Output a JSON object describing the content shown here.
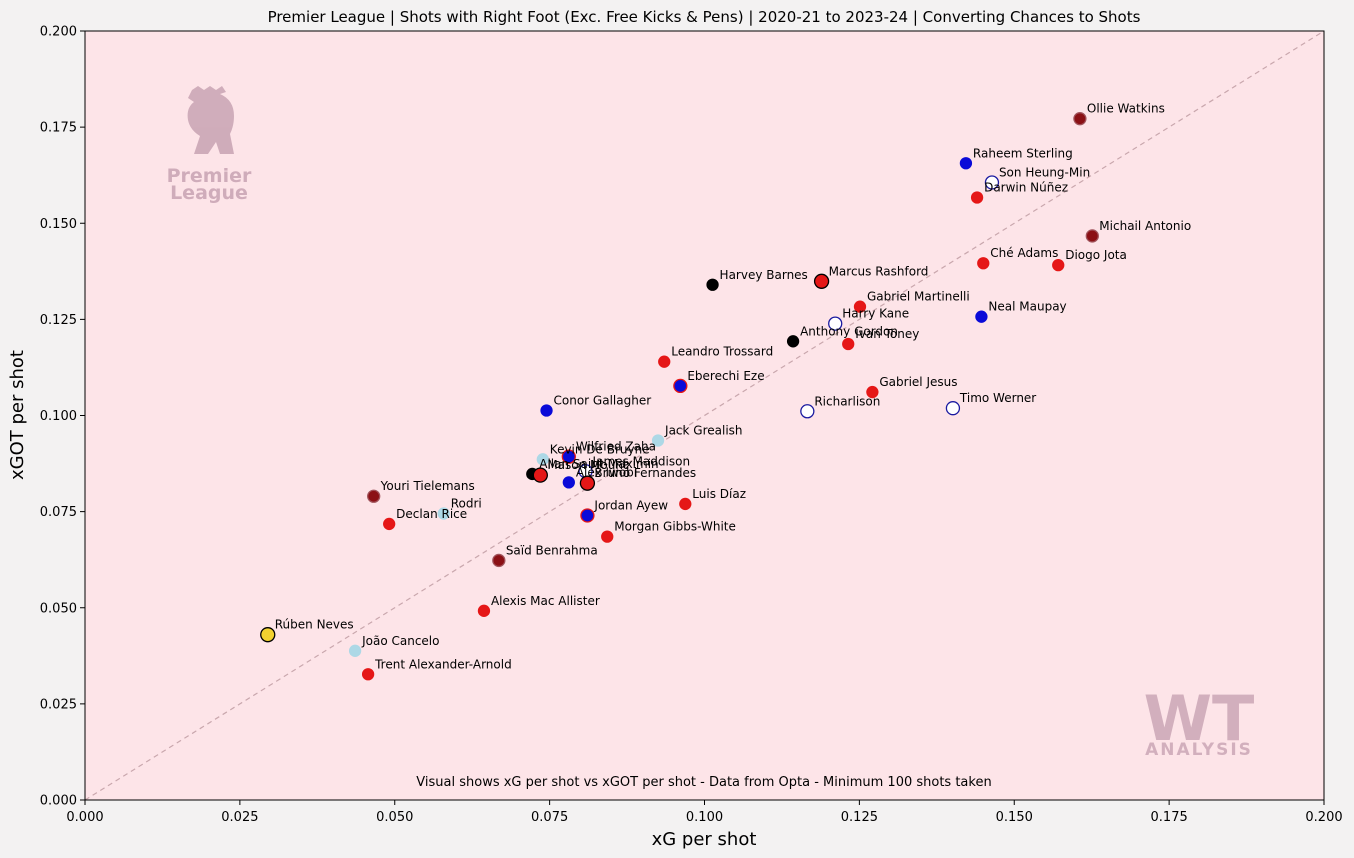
{
  "chart_data": {
    "type": "scatter",
    "title": "Premier League | Shots with Right Foot (Exc. Free Kicks & Pens) | 2020-21 to 2023-24 | Converting Chances to Shots",
    "xlabel": "xG per shot",
    "ylabel": "xGOT per shot",
    "caption": "Visual shows xG per shot vs xGOT per shot - Data from Opta - Minimum 100 shots taken",
    "xlim": [
      0.0,
      0.2
    ],
    "ylim": [
      0.0,
      0.2
    ],
    "xticks": [
      "0.000",
      "0.025",
      "0.050",
      "0.075",
      "0.100",
      "0.125",
      "0.150",
      "0.175",
      "0.200"
    ],
    "yticks": [
      "0.000",
      "0.025",
      "0.050",
      "0.075",
      "0.100",
      "0.125",
      "0.150",
      "0.175",
      "0.200"
    ],
    "reference_line": "y = x",
    "grid": false,
    "points": [
      {
        "label": "Ollie Watkins",
        "x": 0.1606,
        "y": 0.1772,
        "fill": "#8b1015",
        "stroke": "#a0525a",
        "r": 6
      },
      {
        "label": "Raheem Sterling",
        "x": 0.1422,
        "y": 0.1656,
        "fill": "#0a0ad8",
        "stroke": "#0a0ad8",
        "r": 5.5
      },
      {
        "label": "Son Heung-Min",
        "x": 0.1464,
        "y": 0.1606,
        "fill": "#ffffff",
        "stroke": "#1a1aa0",
        "r": 6.5
      },
      {
        "label": "Darwin Núñez",
        "x": 0.144,
        "y": 0.1567,
        "fill": "#e51717",
        "stroke": "#e51717",
        "r": 5.5
      },
      {
        "label": "Michail Antonio",
        "x": 0.1626,
        "y": 0.1467,
        "fill": "#8b1015",
        "stroke": "#a0525a",
        "r": 6
      },
      {
        "label": "Ché Adams",
        "x": 0.145,
        "y": 0.1396,
        "fill": "#e51717",
        "stroke": "#e51717",
        "r": 5.5
      },
      {
        "label": "Diogo Jota",
        "x": 0.1571,
        "y": 0.1391,
        "fill": "#e51717",
        "stroke": "#e51717",
        "r": 5.5
      },
      {
        "label": "Harvey Barnes",
        "x": 0.1013,
        "y": 0.134,
        "fill": "#000000",
        "stroke": "#000000",
        "r": 5.5
      },
      {
        "label": "Marcus Rashford",
        "x": 0.1189,
        "y": 0.1349,
        "fill": "#e51717",
        "stroke": "#000000",
        "r": 7
      },
      {
        "label": "Gabriel Martinelli",
        "x": 0.1251,
        "y": 0.1283,
        "fill": "#e51717",
        "stroke": "#e51717",
        "r": 5.5
      },
      {
        "label": "Neal Maupay",
        "x": 0.1447,
        "y": 0.1257,
        "fill": "#0a0ad8",
        "stroke": "#0a0ad8",
        "r": 5.5
      },
      {
        "label": "Harry Kane",
        "x": 0.1211,
        "y": 0.1239,
        "fill": "#ffffff",
        "stroke": "#1a1aa0",
        "r": 6.5
      },
      {
        "label": "Anthony Gordon",
        "x": 0.1143,
        "y": 0.1193,
        "fill": "#000000",
        "stroke": "#000000",
        "r": 5.5
      },
      {
        "label": "Ivan Toney",
        "x": 0.1232,
        "y": 0.1186,
        "fill": "#e51717",
        "stroke": "#e51717",
        "r": 5.5
      },
      {
        "label": "Leandro Trossard",
        "x": 0.0935,
        "y": 0.114,
        "fill": "#e51717",
        "stroke": "#e51717",
        "r": 5.5
      },
      {
        "label": "Eberechi Eze",
        "x": 0.0961,
        "y": 0.1077,
        "fill": "#0a0ad8",
        "stroke": "#e51717",
        "r": 6.5
      },
      {
        "label": "Gabriel Jesus",
        "x": 0.1271,
        "y": 0.1061,
        "fill": "#e51717",
        "stroke": "#e51717",
        "r": 5.5
      },
      {
        "label": "Conor Gallagher",
        "x": 0.0745,
        "y": 0.1013,
        "fill": "#0a0ad8",
        "stroke": "#0a0ad8",
        "r": 5.5
      },
      {
        "label": "Richarlison",
        "x": 0.1166,
        "y": 0.1011,
        "fill": "#ffffff",
        "stroke": "#1a1aa0",
        "r": 6.5
      },
      {
        "label": "Timo Werner",
        "x": 0.1401,
        "y": 0.1019,
        "fill": "#ffffff",
        "stroke": "#1a1aa0",
        "r": 6.5
      },
      {
        "label": "Jack Grealish",
        "x": 0.0925,
        "y": 0.0935,
        "fill": "#add8e6",
        "stroke": "#add8e6",
        "r": 5.5
      },
      {
        "label": "Wilfried Zaha",
        "x": 0.0781,
        "y": 0.0893,
        "fill": "#0a0ad8",
        "stroke": "#e51717",
        "r": 6.5
      },
      {
        "label": "Kevin De Bruyne",
        "x": 0.0739,
        "y": 0.0886,
        "fill": "#add8e6",
        "stroke": "#add8e6",
        "r": 5.5
      },
      {
        "label": "James Maddison",
        "x": 0.0808,
        "y": 0.0855,
        "fill": "#ffffff",
        "stroke": "#1a1aa0",
        "r": 6.5
      },
      {
        "label": "Allan Saint-Maximin",
        "x": 0.0722,
        "y": 0.0848,
        "fill": "#000000",
        "stroke": "#000000",
        "r": 5.5
      },
      {
        "label": "Mason Mount",
        "x": 0.0735,
        "y": 0.0845,
        "fill": "#e51717",
        "stroke": "#000000",
        "r": 7
      },
      {
        "label": "Bruno Fernandes",
        "x": 0.0811,
        "y": 0.0824,
        "fill": "#e51717",
        "stroke": "#000000",
        "r": 7
      },
      {
        "label": "Alex Iwobi",
        "x": 0.0781,
        "y": 0.0826,
        "fill": "#0a0ad8",
        "stroke": "#0a0ad8",
        "r": 5.5
      },
      {
        "label": "Youri Tielemans",
        "x": 0.0466,
        "y": 0.079,
        "fill": "#8b1015",
        "stroke": "#a0525a",
        "r": 6
      },
      {
        "label": "Luis Díaz",
        "x": 0.0969,
        "y": 0.077,
        "fill": "#e51717",
        "stroke": "#e51717",
        "r": 5.5
      },
      {
        "label": "Rodri",
        "x": 0.0579,
        "y": 0.0745,
        "fill": "#add8e6",
        "stroke": "#add8e6",
        "r": 5.5
      },
      {
        "label": "Jordan Ayew",
        "x": 0.0811,
        "y": 0.074,
        "fill": "#0a0ad8",
        "stroke": "#e51717",
        "r": 6.5
      },
      {
        "label": "Declan Rice",
        "x": 0.0491,
        "y": 0.0718,
        "fill": "#e51717",
        "stroke": "#e51717",
        "r": 5.5
      },
      {
        "label": "Morgan Gibbs-White",
        "x": 0.0843,
        "y": 0.0685,
        "fill": "#e51717",
        "stroke": "#e51717",
        "r": 5.5
      },
      {
        "label": "Saïd Benrahma",
        "x": 0.0668,
        "y": 0.0623,
        "fill": "#8b1015",
        "stroke": "#a0525a",
        "r": 6
      },
      {
        "label": "Alexis Mac Allister",
        "x": 0.0644,
        "y": 0.0492,
        "fill": "#e51717",
        "stroke": "#e51717",
        "r": 5.5
      },
      {
        "label": "Rúben Neves",
        "x": 0.0295,
        "y": 0.043,
        "fill": "#f2d230",
        "stroke": "#000000",
        "r": 7
      },
      {
        "label": "João Cancelo",
        "x": 0.0436,
        "y": 0.0388,
        "fill": "#add8e6",
        "stroke": "#add8e6",
        "r": 5.5
      },
      {
        "label": "Trent Alexander-Arnold",
        "x": 0.0457,
        "y": 0.0327,
        "fill": "#e51717",
        "stroke": "#e51717",
        "r": 5.5
      }
    ]
  },
  "watermarks": {
    "league_logo_line1": "Premier",
    "league_logo_line2": "League",
    "brand_mark": "WT",
    "brand_sub": "ANALYSIS"
  },
  "colors": {
    "plot_background": "#fde4e8",
    "page_background": "#f3f2f2",
    "reference_line": "#c9a7ad",
    "watermark": "#c8a3b3"
  }
}
